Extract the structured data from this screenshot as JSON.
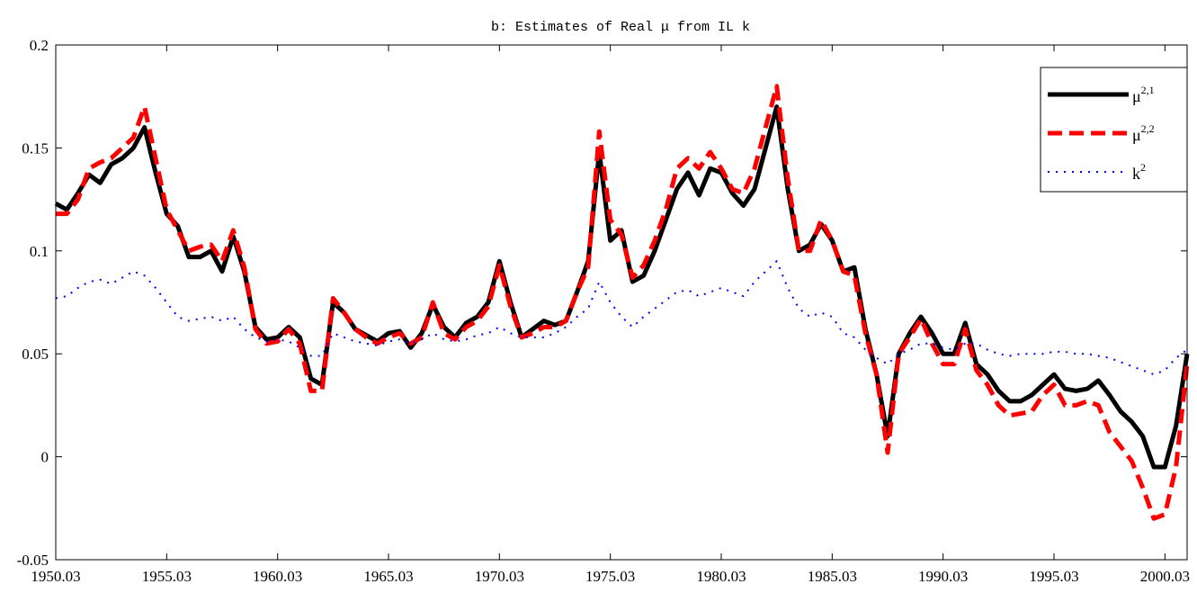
{
  "chart_data": {
    "type": "line",
    "title": "b: Estimates of Real μ from IL k",
    "x": [
      1950.03,
      1950.53,
      1951.03,
      1951.53,
      1952.03,
      1952.53,
      1953.03,
      1953.53,
      1954.03,
      1954.53,
      1955.03,
      1955.53,
      1956.03,
      1956.53,
      1957.03,
      1957.53,
      1958.03,
      1958.53,
      1959.03,
      1959.53,
      1960.03,
      1960.53,
      1961.03,
      1961.53,
      1962.03,
      1962.53,
      1963.03,
      1963.53,
      1964.03,
      1964.53,
      1965.03,
      1965.53,
      1966.03,
      1966.53,
      1967.03,
      1967.53,
      1968.03,
      1968.53,
      1969.03,
      1969.53,
      1970.03,
      1970.53,
      1971.03,
      1971.53,
      1972.03,
      1972.53,
      1973.03,
      1973.53,
      1974.03,
      1974.53,
      1975.03,
      1975.53,
      1976.03,
      1976.53,
      1977.03,
      1977.53,
      1978.03,
      1978.53,
      1979.03,
      1979.53,
      1980.03,
      1980.53,
      1981.03,
      1981.53,
      1982.03,
      1982.53,
      1983.03,
      1983.53,
      1984.03,
      1984.53,
      1985.03,
      1985.53,
      1986.03,
      1986.53,
      1987.03,
      1987.53,
      1988.03,
      1988.53,
      1989.03,
      1989.53,
      1990.03,
      1990.53,
      1991.03,
      1991.53,
      1992.03,
      1992.53,
      1993.03,
      1993.53,
      1994.03,
      1994.53,
      1995.03,
      1995.53,
      1996.03,
      1996.53,
      1997.03,
      1997.53,
      1998.03,
      1998.53,
      1999.03,
      1999.53,
      2000.03,
      2000.53,
      2001.03
    ],
    "series": [
      {
        "name": "μ2,1",
        "color": "#000000",
        "style": "solid",
        "values": [
          0.123,
          0.12,
          0.128,
          0.137,
          0.133,
          0.142,
          0.145,
          0.15,
          0.16,
          0.138,
          0.118,
          0.112,
          0.097,
          0.097,
          0.1,
          0.09,
          0.107,
          0.09,
          0.063,
          0.057,
          0.058,
          0.063,
          0.058,
          0.038,
          0.035,
          0.075,
          0.07,
          0.062,
          0.059,
          0.056,
          0.06,
          0.061,
          0.053,
          0.06,
          0.074,
          0.063,
          0.058,
          0.065,
          0.068,
          0.075,
          0.095,
          0.075,
          0.058,
          0.062,
          0.066,
          0.064,
          0.066,
          0.08,
          0.095,
          0.148,
          0.105,
          0.11,
          0.085,
          0.088,
          0.1,
          0.115,
          0.13,
          0.138,
          0.127,
          0.14,
          0.138,
          0.128,
          0.122,
          0.13,
          0.15,
          0.17,
          0.13,
          0.1,
          0.103,
          0.113,
          0.105,
          0.09,
          0.092,
          0.062,
          0.04,
          0.01,
          0.05,
          0.06,
          0.068,
          0.06,
          0.05,
          0.05,
          0.065,
          0.045,
          0.04,
          0.032,
          0.027,
          0.027,
          0.03,
          0.035,
          0.04,
          0.033,
          0.032,
          0.033,
          0.037,
          0.03,
          0.022,
          0.017,
          0.01,
          -0.005,
          -0.005,
          0.015,
          0.05
        ]
      },
      {
        "name": "μ2,2",
        "color": "#ff0000",
        "style": "dashed",
        "values": [
          0.118,
          0.118,
          0.125,
          0.14,
          0.143,
          0.145,
          0.15,
          0.155,
          0.17,
          0.145,
          0.12,
          0.11,
          0.1,
          0.102,
          0.103,
          0.095,
          0.11,
          0.092,
          0.062,
          0.055,
          0.056,
          0.062,
          0.055,
          0.032,
          0.032,
          0.077,
          0.07,
          0.062,
          0.058,
          0.055,
          0.058,
          0.06,
          0.055,
          0.058,
          0.075,
          0.06,
          0.057,
          0.063,
          0.066,
          0.073,
          0.093,
          0.073,
          0.058,
          0.06,
          0.063,
          0.063,
          0.066,
          0.08,
          0.092,
          0.158,
          0.115,
          0.108,
          0.087,
          0.093,
          0.105,
          0.12,
          0.14,
          0.145,
          0.14,
          0.148,
          0.14,
          0.13,
          0.128,
          0.14,
          0.16,
          0.18,
          0.135,
          0.1,
          0.1,
          0.115,
          0.105,
          0.09,
          0.088,
          0.06,
          0.04,
          0.002,
          0.05,
          0.058,
          0.067,
          0.055,
          0.045,
          0.045,
          0.062,
          0.042,
          0.035,
          0.025,
          0.02,
          0.021,
          0.022,
          0.03,
          0.035,
          0.025,
          0.025,
          0.027,
          0.025,
          0.012,
          0.005,
          -0.002,
          -0.015,
          -0.03,
          -0.028,
          -0.005,
          0.045
        ]
      },
      {
        "name": "k2",
        "color": "#0000ff",
        "style": "dotted",
        "values": [
          0.077,
          0.078,
          0.082,
          0.085,
          0.086,
          0.084,
          0.087,
          0.09,
          0.088,
          0.082,
          0.075,
          0.068,
          0.066,
          0.067,
          0.068,
          0.066,
          0.068,
          0.062,
          0.058,
          0.056,
          0.057,
          0.056,
          0.053,
          0.049,
          0.049,
          0.06,
          0.058,
          0.056,
          0.055,
          0.054,
          0.056,
          0.057,
          0.055,
          0.057,
          0.06,
          0.057,
          0.056,
          0.057,
          0.059,
          0.06,
          0.063,
          0.06,
          0.058,
          0.058,
          0.058,
          0.06,
          0.063,
          0.068,
          0.072,
          0.085,
          0.075,
          0.068,
          0.063,
          0.068,
          0.072,
          0.076,
          0.08,
          0.081,
          0.078,
          0.08,
          0.082,
          0.08,
          0.078,
          0.085,
          0.09,
          0.095,
          0.082,
          0.072,
          0.068,
          0.07,
          0.068,
          0.06,
          0.058,
          0.052,
          0.048,
          0.045,
          0.05,
          0.052,
          0.055,
          0.055,
          0.053,
          0.052,
          0.055,
          0.055,
          0.052,
          0.05,
          0.049,
          0.05,
          0.05,
          0.05,
          0.051,
          0.051,
          0.05,
          0.05,
          0.049,
          0.048,
          0.046,
          0.044,
          0.042,
          0.04,
          0.042,
          0.048,
          0.052
        ]
      }
    ],
    "xlim": [
      1950.03,
      2001.03
    ],
    "xticks": [
      1950.03,
      1955.03,
      1960.03,
      1965.03,
      1970.03,
      1975.03,
      1980.03,
      1985.03,
      1990.03,
      1995.03,
      2000.03
    ],
    "ylim": [
      -0.05,
      0.2
    ],
    "yticks": [
      -0.05,
      0,
      0.05,
      0.1,
      0.15,
      0.2
    ],
    "grid": false,
    "legend": "upper right"
  }
}
